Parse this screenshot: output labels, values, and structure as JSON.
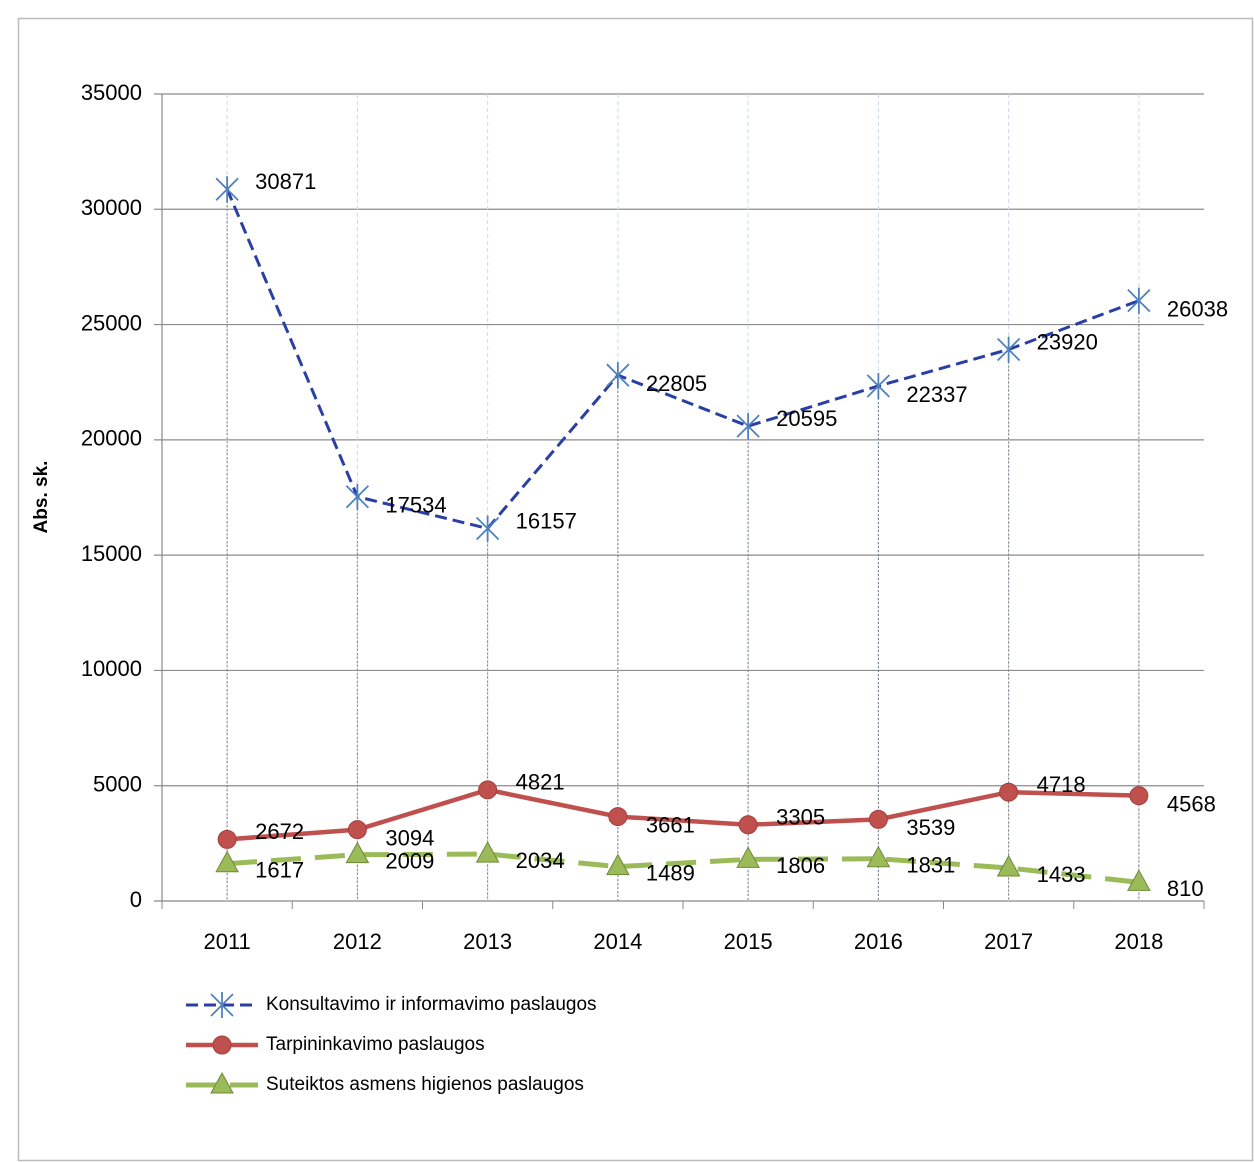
{
  "chart_data": {
    "type": "line",
    "y_label": "Abs. sk.",
    "categories": [
      "2011",
      "2012",
      "2013",
      "2014",
      "2015",
      "2016",
      "2017",
      "2018"
    ],
    "series": [
      {
        "name": "Konsultavimo ir informavimo paslaugos",
        "color": "#2a3fa5",
        "marker_color": "#4f81bd",
        "marker": "star",
        "dash": "short",
        "values": [
          30871,
          17534,
          16157,
          22805,
          20595,
          22337,
          23920,
          26038
        ]
      },
      {
        "name": "Tarpininkavimo paslaugos",
        "color": "#c0504d",
        "marker_color": "#c0504d",
        "marker": "circle",
        "dash": "solid",
        "values": [
          2672,
          3094,
          4821,
          3661,
          3305,
          3539,
          4718,
          4568
        ]
      },
      {
        "name": "Suteiktos asmens higienos paslaugos",
        "color": "#9bbb59",
        "marker_color": "#9bbb59",
        "marker": "triangle",
        "dash": "long",
        "values": [
          1617,
          2009,
          2034,
          1489,
          1806,
          1831,
          1433,
          810
        ]
      }
    ],
    "ylim": [
      0,
      35000
    ],
    "yticks": [
      0,
      5000,
      10000,
      15000,
      20000,
      25000,
      30000,
      35000
    ],
    "grid": true,
    "drop_lines": true,
    "legend": "bottom-left"
  }
}
